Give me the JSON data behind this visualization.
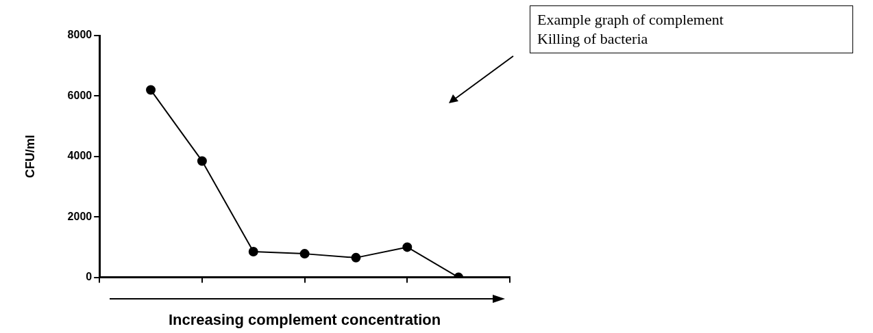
{
  "chart_data": {
    "type": "line",
    "xlabel": "Increasing complement concentration",
    "ylabel": "CFU/ml",
    "annotations": [
      "Example graph of complement\nKilling of bacteria"
    ],
    "categories": [
      null,
      null,
      null,
      null,
      null,
      null,
      null
    ],
    "series": [
      {
        "color": "#000000",
        "values": [
          6200,
          3850,
          850,
          780,
          650,
          1000,
          0
        ]
      }
    ],
    "ylim": [
      0,
      8000
    ],
    "yticks": [
      0,
      2000,
      4000,
      6000,
      8000
    ],
    "grid": false,
    "legend": false,
    "marker": "circle",
    "line_style": "solid",
    "tick_labels": "y"
  }
}
